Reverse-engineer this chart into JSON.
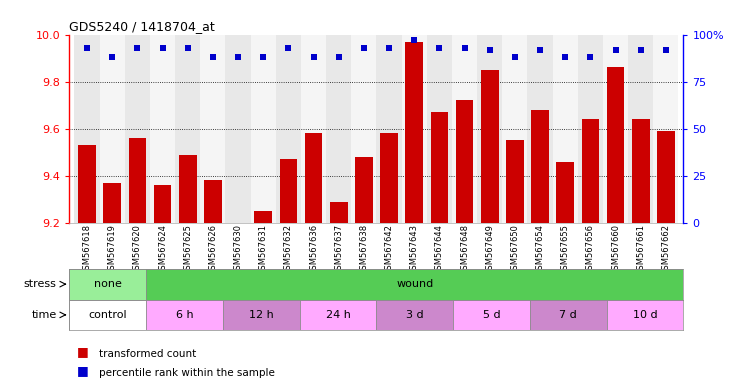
{
  "title": "GDS5240 / 1418704_at",
  "samples": [
    "GSM567618",
    "GSM567619",
    "GSM567620",
    "GSM567624",
    "GSM567625",
    "GSM567626",
    "GSM567630",
    "GSM567631",
    "GSM567632",
    "GSM567636",
    "GSM567637",
    "GSM567638",
    "GSM567642",
    "GSM567643",
    "GSM567644",
    "GSM567648",
    "GSM567649",
    "GSM567650",
    "GSM567654",
    "GSM567655",
    "GSM567656",
    "GSM567660",
    "GSM567661",
    "GSM567662"
  ],
  "bar_values": [
    9.53,
    9.37,
    9.56,
    9.36,
    9.49,
    9.38,
    9.2,
    9.25,
    9.47,
    9.58,
    9.29,
    9.48,
    9.58,
    9.97,
    9.67,
    9.72,
    9.85,
    9.55,
    9.68,
    9.46,
    9.64,
    9.86,
    9.64,
    9.59
  ],
  "percentile_values": [
    93,
    88,
    93,
    93,
    93,
    88,
    88,
    88,
    93,
    88,
    88,
    93,
    93,
    97,
    93,
    93,
    92,
    88,
    92,
    88,
    88,
    92,
    92,
    92
  ],
  "ylim_left": [
    9.2,
    10.0
  ],
  "ylim_right": [
    0,
    100
  ],
  "yticks_left": [
    9.2,
    9.4,
    9.6,
    9.8,
    10.0
  ],
  "yticks_right": [
    0,
    25,
    50,
    75,
    100
  ],
  "bar_color": "#cc0000",
  "dot_color": "#0000cc",
  "stress_groups": [
    {
      "label": "none",
      "start": 0,
      "end": 3,
      "color": "#99ee99"
    },
    {
      "label": "wound",
      "start": 3,
      "end": 24,
      "color": "#55cc55"
    }
  ],
  "time_groups": [
    {
      "label": "control",
      "start": 0,
      "end": 3,
      "color": "#ffffff"
    },
    {
      "label": "6 h",
      "start": 3,
      "end": 6,
      "color": "#ffaaff"
    },
    {
      "label": "12 h",
      "start": 6,
      "end": 9,
      "color": "#cc88cc"
    },
    {
      "label": "24 h",
      "start": 9,
      "end": 12,
      "color": "#ffaaff"
    },
    {
      "label": "3 d",
      "start": 12,
      "end": 15,
      "color": "#cc88cc"
    },
    {
      "label": "5 d",
      "start": 15,
      "end": 18,
      "color": "#ffaaff"
    },
    {
      "label": "7 d",
      "start": 18,
      "end": 21,
      "color": "#cc88cc"
    },
    {
      "label": "10 d",
      "start": 21,
      "end": 24,
      "color": "#ffaaff"
    }
  ],
  "col_colors": [
    "#e8e8e8",
    "#f5f5f5"
  ],
  "bg_color": "#ffffff",
  "grid_yticks": [
    9.4,
    9.6,
    9.8
  ]
}
